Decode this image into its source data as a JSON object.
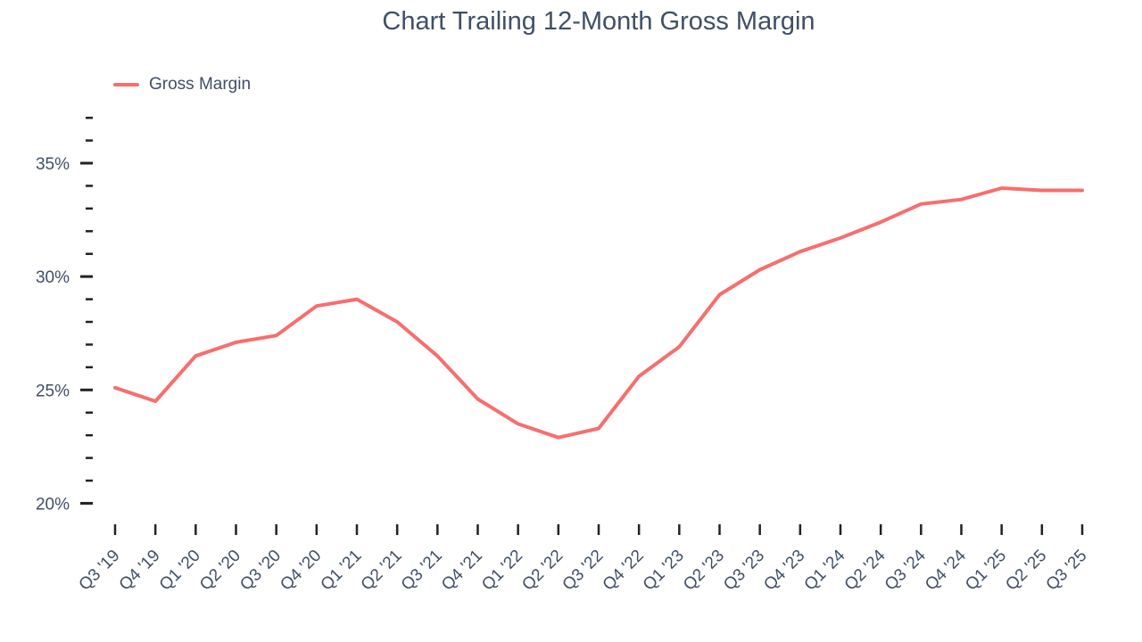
{
  "chart_data": {
    "type": "line",
    "title": "Chart Trailing 12-Month Gross Margin",
    "xlabel": "",
    "ylabel": "",
    "grid": false,
    "legend_position": "top-left",
    "categories": [
      "Q3 '19",
      "Q4 '19",
      "Q1 '20",
      "Q2 '20",
      "Q3 '20",
      "Q4 '20",
      "Q1 '21",
      "Q2 '21",
      "Q3 '21",
      "Q4 '21",
      "Q1 '22",
      "Q2 '22",
      "Q3 '22",
      "Q4 '22",
      "Q1 '23",
      "Q2 '23",
      "Q3 '23",
      "Q4 '23",
      "Q1 '24",
      "Q2 '24",
      "Q3 '24",
      "Q4 '24",
      "Q1 '25",
      "Q2 '25",
      "Q3 '25"
    ],
    "series": [
      {
        "name": "Gross Margin",
        "color": "#F76E6E",
        "values": [
          25.1,
          24.5,
          26.5,
          27.1,
          27.4,
          28.7,
          29.0,
          28.0,
          26.5,
          24.6,
          23.5,
          22.9,
          23.3,
          25.6,
          26.9,
          29.2,
          30.3,
          31.1,
          31.7,
          32.4,
          33.2,
          33.4,
          33.9,
          33.8,
          33.8
        ]
      }
    ],
    "y_axis": {
      "unit": "%",
      "range": [
        20,
        37
      ],
      "major_ticks": [
        20,
        25,
        30,
        35
      ],
      "major_tick_labels": [
        "20%",
        "25%",
        "30%",
        "35%"
      ],
      "minor_tick_step": 1
    },
    "x_axis": {
      "label_rotation_deg": -45
    }
  },
  "colors": {
    "background": "#FFFFFF",
    "title": "#404F66",
    "axis_text": "#404F66",
    "tick_mark": "#222222",
    "line": "#F76E6E"
  }
}
